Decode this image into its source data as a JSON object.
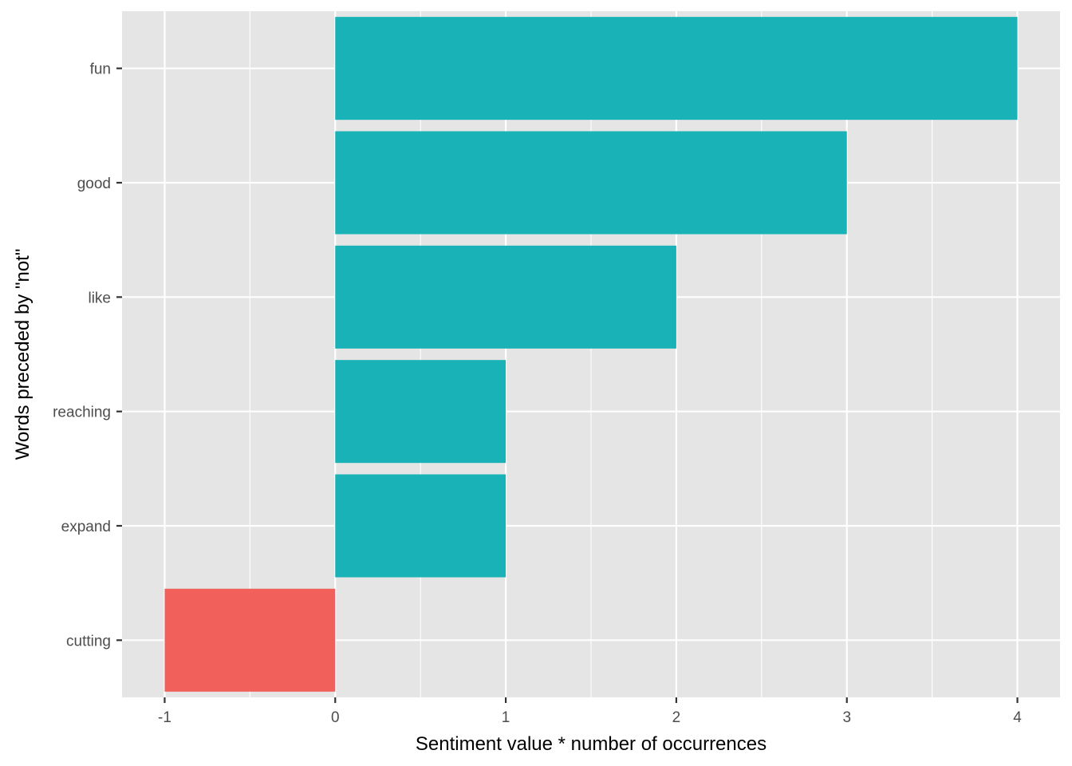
{
  "chart_data": {
    "type": "bar",
    "orientation": "horizontal",
    "title": "",
    "xlabel": "Sentiment value * number of occurrences",
    "ylabel": "Words preceded by \"not\"",
    "categories": [
      "fun",
      "good",
      "like",
      "reaching",
      "expand",
      "cutting"
    ],
    "values": [
      4,
      3,
      2,
      1,
      1,
      -1
    ],
    "xlim": [
      -1.25,
      4.25
    ],
    "x_ticks": [
      -1,
      0,
      1,
      2,
      3,
      4
    ],
    "x_tick_labels": [
      "-1",
      "0",
      "1",
      "2",
      "3",
      "4"
    ],
    "grid": true,
    "legend": "none",
    "colors": {
      "positive": "#19B3B7",
      "negative": "#F2605C",
      "panel_background": "#E5E5E5",
      "grid": "#FFFFFF"
    }
  }
}
